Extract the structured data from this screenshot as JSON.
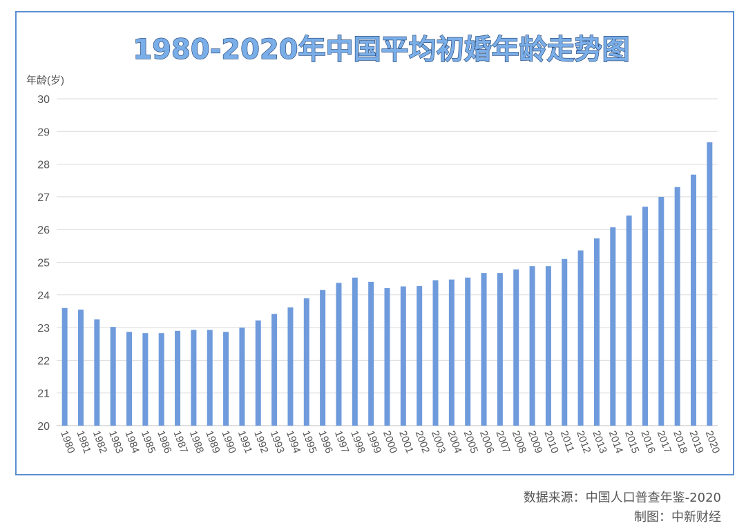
{
  "chart_data": {
    "type": "bar",
    "title": "1980-2020年中国平均初婚年龄走势图",
    "ylabel": "年龄(岁)",
    "xlabel": "",
    "ylim": [
      20,
      30
    ],
    "yticks": [
      20,
      21,
      22,
      23,
      24,
      25,
      26,
      27,
      28,
      29,
      30
    ],
    "grid": true,
    "legend": "none",
    "bar_color": "#6f9bdc",
    "categories": [
      "1980",
      "1981",
      "1982",
      "1983",
      "1984",
      "1985",
      "1986",
      "1987",
      "1988",
      "1989",
      "1990",
      "1991",
      "1992",
      "1993",
      "1994",
      "1995",
      "1996",
      "1997",
      "1998",
      "1999",
      "2000",
      "2001",
      "2002",
      "2003",
      "2004",
      "2005",
      "2006",
      "2007",
      "2008",
      "2009",
      "2010",
      "2011",
      "2012",
      "2013",
      "2014",
      "2015",
      "2016",
      "2017",
      "2018",
      "2019",
      "2020"
    ],
    "values": [
      23.6,
      23.55,
      23.25,
      23.02,
      22.87,
      22.83,
      22.83,
      22.9,
      22.93,
      22.93,
      22.87,
      23.0,
      23.22,
      23.42,
      23.62,
      23.9,
      24.15,
      24.37,
      24.53,
      24.4,
      24.21,
      24.26,
      24.27,
      24.45,
      24.47,
      24.53,
      24.67,
      24.67,
      24.78,
      24.88,
      24.88,
      25.1,
      25.36,
      25.73,
      26.07,
      26.43,
      26.7,
      27.0,
      27.3,
      27.68,
      28.67
    ]
  },
  "credits": {
    "source": "数据来源：中国人口普查年鉴-2020",
    "maker": "制图：中新财经"
  }
}
